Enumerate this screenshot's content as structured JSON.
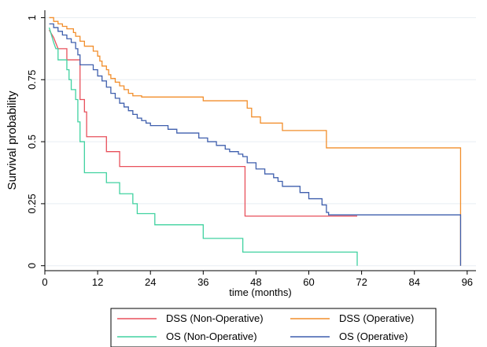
{
  "chart_data": {
    "type": "line",
    "step": true,
    "xlabel": "time (months)",
    "ylabel": "Survival probability",
    "xlim": [
      0,
      98
    ],
    "ylim": [
      -0.02,
      1.03
    ],
    "xticks": [
      {
        "value": 0,
        "label": "0"
      },
      {
        "value": 12,
        "label": "12"
      },
      {
        "value": 24,
        "label": "24"
      },
      {
        "value": 36,
        "label": "36"
      },
      {
        "value": 48,
        "label": "48"
      },
      {
        "value": 60,
        "label": "60"
      },
      {
        "value": 72,
        "label": "72"
      },
      {
        "value": 84,
        "label": "84"
      },
      {
        "value": 96,
        "label": "96"
      }
    ],
    "yticks": [
      {
        "value": 0,
        "label": "0"
      },
      {
        "value": 0.25,
        "label": "0.25"
      },
      {
        "value": 0.5,
        "label": "0.5"
      },
      {
        "value": 0.75,
        "label": "0.75"
      },
      {
        "value": 1,
        "label": "1"
      }
    ],
    "grid": {
      "horizontal": true,
      "vertical": false
    },
    "legend_position": "bottom",
    "series": [
      {
        "name": "DSS (Non-Operative)",
        "color": "#e8505b",
        "points": [
          [
            1,
            0.95
          ],
          [
            2,
            0.92
          ],
          [
            3,
            0.875
          ],
          [
            5,
            0.875
          ],
          [
            5,
            0.83
          ],
          [
            8,
            0.83
          ],
          [
            8,
            0.67
          ],
          [
            9,
            0.67
          ],
          [
            9,
            0.62
          ],
          [
            9.5,
            0.62
          ],
          [
            9.5,
            0.52
          ],
          [
            14,
            0.52
          ],
          [
            14,
            0.46
          ],
          [
            17,
            0.46
          ],
          [
            17,
            0.4
          ],
          [
            45.5,
            0.4
          ],
          [
            45.5,
            0.2
          ],
          [
            71,
            0.2
          ]
        ]
      },
      {
        "name": "DSS (Operative)",
        "color": "#f28e2b",
        "points": [
          [
            1,
            1
          ],
          [
            2,
            1
          ],
          [
            2,
            0.985
          ],
          [
            3,
            0.985
          ],
          [
            3,
            0.975
          ],
          [
            4,
            0.975
          ],
          [
            4,
            0.965
          ],
          [
            5,
            0.965
          ],
          [
            5,
            0.955
          ],
          [
            6.5,
            0.955
          ],
          [
            6.5,
            0.94
          ],
          [
            7,
            0.94
          ],
          [
            7,
            0.925
          ],
          [
            8,
            0.925
          ],
          [
            8,
            0.905
          ],
          [
            9,
            0.905
          ],
          [
            9,
            0.885
          ],
          [
            11,
            0.885
          ],
          [
            11,
            0.865
          ],
          [
            12,
            0.865
          ],
          [
            12,
            0.845
          ],
          [
            12.5,
            0.845
          ],
          [
            12.5,
            0.825
          ],
          [
            13,
            0.825
          ],
          [
            13,
            0.805
          ],
          [
            14,
            0.805
          ],
          [
            14,
            0.79
          ],
          [
            14.5,
            0.79
          ],
          [
            14.5,
            0.77
          ],
          [
            15,
            0.77
          ],
          [
            15,
            0.755
          ],
          [
            16,
            0.755
          ],
          [
            16,
            0.74
          ],
          [
            17,
            0.74
          ],
          [
            17,
            0.725
          ],
          [
            18,
            0.725
          ],
          [
            18,
            0.71
          ],
          [
            19,
            0.71
          ],
          [
            19,
            0.695
          ],
          [
            20,
            0.695
          ],
          [
            20,
            0.685
          ],
          [
            22,
            0.685
          ],
          [
            22,
            0.68
          ],
          [
            36,
            0.68
          ],
          [
            36,
            0.665
          ],
          [
            46,
            0.665
          ],
          [
            46,
            0.635
          ],
          [
            47,
            0.635
          ],
          [
            47,
            0.6
          ],
          [
            49,
            0.6
          ],
          [
            49,
            0.575
          ],
          [
            54,
            0.575
          ],
          [
            54,
            0.545
          ],
          [
            64,
            0.545
          ],
          [
            64,
            0.475
          ],
          [
            94.5,
            0.475
          ],
          [
            94.5,
            0
          ]
        ]
      },
      {
        "name": "OS (Non-Operative)",
        "color": "#40d2a0",
        "points": [
          [
            1,
            0.96
          ],
          [
            2,
            0.9
          ],
          [
            2.5,
            0.875
          ],
          [
            3,
            0.875
          ],
          [
            3,
            0.83
          ],
          [
            5,
            0.83
          ],
          [
            5,
            0.79
          ],
          [
            5.5,
            0.79
          ],
          [
            5.5,
            0.75
          ],
          [
            6,
            0.75
          ],
          [
            6,
            0.71
          ],
          [
            7,
            0.71
          ],
          [
            7,
            0.67
          ],
          [
            7.5,
            0.67
          ],
          [
            7.5,
            0.58
          ],
          [
            8,
            0.58
          ],
          [
            8,
            0.5
          ],
          [
            9,
            0.5
          ],
          [
            9,
            0.375
          ],
          [
            14,
            0.375
          ],
          [
            14,
            0.335
          ],
          [
            17,
            0.335
          ],
          [
            17,
            0.29
          ],
          [
            20,
            0.29
          ],
          [
            20,
            0.25
          ],
          [
            21,
            0.25
          ],
          [
            21,
            0.21
          ],
          [
            25,
            0.21
          ],
          [
            25,
            0.165
          ],
          [
            36,
            0.165
          ],
          [
            36,
            0.11
          ],
          [
            45,
            0.11
          ],
          [
            45,
            0.055
          ],
          [
            71,
            0.055
          ],
          [
            71,
            0
          ]
        ]
      },
      {
        "name": "OS (Operative)",
        "color": "#3f5fad",
        "points": [
          [
            1,
            0.975
          ],
          [
            2,
            0.975
          ],
          [
            2,
            0.96
          ],
          [
            3,
            0.96
          ],
          [
            3,
            0.945
          ],
          [
            4,
            0.945
          ],
          [
            4,
            0.93
          ],
          [
            5,
            0.93
          ],
          [
            5,
            0.915
          ],
          [
            6,
            0.915
          ],
          [
            6,
            0.9
          ],
          [
            7,
            0.9
          ],
          [
            7,
            0.875
          ],
          [
            7.5,
            0.875
          ],
          [
            7.5,
            0.85
          ],
          [
            8,
            0.85
          ],
          [
            8,
            0.81
          ],
          [
            11,
            0.81
          ],
          [
            11,
            0.79
          ],
          [
            12,
            0.79
          ],
          [
            12,
            0.765
          ],
          [
            13,
            0.765
          ],
          [
            13,
            0.745
          ],
          [
            14,
            0.745
          ],
          [
            14,
            0.72
          ],
          [
            15,
            0.72
          ],
          [
            15,
            0.695
          ],
          [
            16,
            0.695
          ],
          [
            16,
            0.675
          ],
          [
            17,
            0.675
          ],
          [
            17,
            0.655
          ],
          [
            18,
            0.655
          ],
          [
            18,
            0.64
          ],
          [
            19,
            0.64
          ],
          [
            19,
            0.625
          ],
          [
            20,
            0.625
          ],
          [
            20,
            0.61
          ],
          [
            21,
            0.61
          ],
          [
            21,
            0.595
          ],
          [
            22,
            0.595
          ],
          [
            22,
            0.585
          ],
          [
            23,
            0.585
          ],
          [
            23,
            0.575
          ],
          [
            24,
            0.575
          ],
          [
            24,
            0.565
          ],
          [
            28,
            0.565
          ],
          [
            28,
            0.55
          ],
          [
            30,
            0.55
          ],
          [
            30,
            0.535
          ],
          [
            35,
            0.535
          ],
          [
            35,
            0.515
          ],
          [
            37,
            0.515
          ],
          [
            37,
            0.5
          ],
          [
            39,
            0.5
          ],
          [
            39,
            0.485
          ],
          [
            41,
            0.485
          ],
          [
            41,
            0.47
          ],
          [
            42,
            0.47
          ],
          [
            42,
            0.46
          ],
          [
            44,
            0.46
          ],
          [
            44,
            0.45
          ],
          [
            45,
            0.45
          ],
          [
            45,
            0.44
          ],
          [
            46,
            0.44
          ],
          [
            46,
            0.415
          ],
          [
            48,
            0.415
          ],
          [
            48,
            0.39
          ],
          [
            50,
            0.39
          ],
          [
            50,
            0.37
          ],
          [
            52,
            0.37
          ],
          [
            52,
            0.355
          ],
          [
            53,
            0.355
          ],
          [
            53,
            0.34
          ],
          [
            54,
            0.34
          ],
          [
            54,
            0.32
          ],
          [
            58,
            0.32
          ],
          [
            58,
            0.295
          ],
          [
            60,
            0.295
          ],
          [
            60,
            0.27
          ],
          [
            63,
            0.27
          ],
          [
            63,
            0.245
          ],
          [
            64,
            0.245
          ],
          [
            64,
            0.215
          ],
          [
            64.5,
            0.215
          ],
          [
            64.5,
            0.205
          ],
          [
            94.5,
            0.205
          ],
          [
            94.5,
            0
          ]
        ]
      }
    ]
  }
}
